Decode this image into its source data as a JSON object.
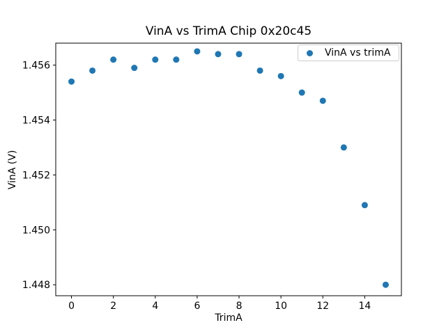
{
  "figure": {
    "background": "#ffffff",
    "frame_color": "#000000",
    "text_color": "#000000"
  },
  "chart_data": {
    "type": "scatter",
    "title": "VinA vs TrimA Chip 0x20c45",
    "xlabel": "TrimA",
    "ylabel": "VinA (V)",
    "legend": {
      "label": "VinA vs trimA",
      "position": "upper right",
      "marker": "circle-icon",
      "marker_color": "#1f77b4"
    },
    "series": [
      {
        "name": "VinA vs trimA",
        "color": "#1f77b4",
        "x": [
          0,
          1,
          2,
          3,
          4,
          5,
          6,
          7,
          8,
          9,
          10,
          11,
          12,
          13,
          14,
          15
        ],
        "y": [
          1.4554,
          1.4558,
          1.4562,
          1.4559,
          1.4562,
          1.4562,
          1.4565,
          1.4564,
          1.4564,
          1.4558,
          1.4556,
          1.455,
          1.4547,
          1.453,
          1.4509,
          1.448
        ]
      }
    ],
    "xlim": [
      -0.75,
      15.75
    ],
    "ylim": [
      1.4476,
      1.4568
    ],
    "xticks": [
      0,
      2,
      4,
      6,
      8,
      10,
      12,
      14
    ],
    "yticks": [
      1.448,
      1.45,
      1.452,
      1.454,
      1.456
    ],
    "ytick_decimals": 3,
    "grid": false,
    "marker_size_px": 9
  }
}
